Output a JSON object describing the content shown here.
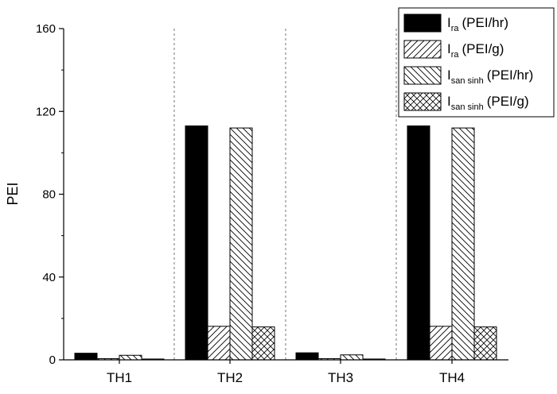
{
  "chart_data": {
    "type": "bar",
    "title": "",
    "xlabel": "",
    "ylabel": "PEI",
    "ylim": [
      0,
      160
    ],
    "yticks": [
      0,
      40,
      80,
      120,
      160
    ],
    "categories": [
      "TH1",
      "TH2",
      "TH3",
      "TH4"
    ],
    "grid": false,
    "legend_position": "top-right",
    "series": [
      {
        "name_main": "I",
        "name_sub": "ra",
        "name_unit": "(PEI/hr)",
        "fill": "solid",
        "color": "#000000",
        "values": [
          3.2,
          113.0,
          3.4,
          113.0
        ]
      },
      {
        "name_main": "I",
        "name_sub": "ra",
        "name_unit": "(PEI/g)",
        "fill": "hatch-forward",
        "color": "#000000",
        "values": [
          0.6,
          16.2,
          0.6,
          16.2
        ]
      },
      {
        "name_main": "I",
        "name_sub": "san sinh",
        "name_unit": "(PEI/hr)",
        "fill": "hatch-back",
        "color": "#000000",
        "values": [
          2.2,
          112.0,
          2.4,
          112.0
        ]
      },
      {
        "name_main": "I",
        "name_sub": "san sinh",
        "name_unit": "(PEI/g)",
        "fill": "crosshatch",
        "color": "#000000",
        "values": [
          0.4,
          15.9,
          0.4,
          15.9
        ]
      }
    ]
  }
}
